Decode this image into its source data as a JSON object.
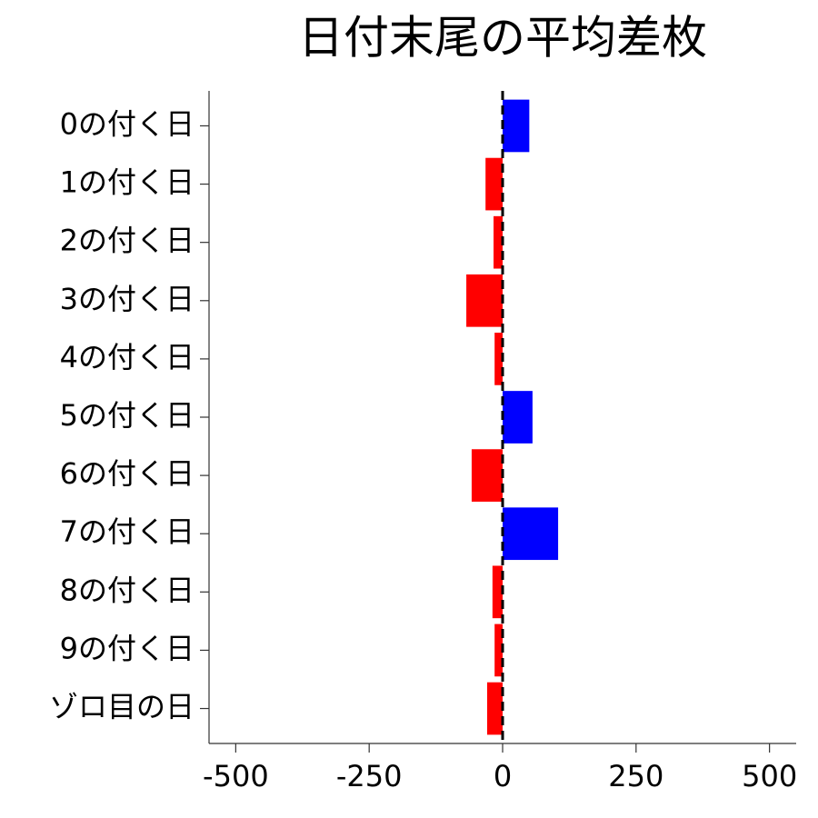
{
  "chart_data": {
    "type": "barh",
    "title": "日付末尾の平均差枚",
    "categories": [
      "0の付く日",
      "1の付く日",
      "2の付く日",
      "3の付く日",
      "4の付く日",
      "5の付く日",
      "6の付く日",
      "7の付く日",
      "8の付く日",
      "9の付く日",
      "ゾロ目の日"
    ],
    "values": [
      50,
      -32,
      -17,
      -68,
      -15,
      56,
      -58,
      104,
      -19,
      -15,
      -29
    ],
    "positive_color": "#0000ff",
    "negative_color": "#ff0000",
    "xlim": [
      -550,
      550
    ],
    "xticks": [
      -500,
      -250,
      0,
      250,
      500
    ],
    "reference_line": 0
  }
}
